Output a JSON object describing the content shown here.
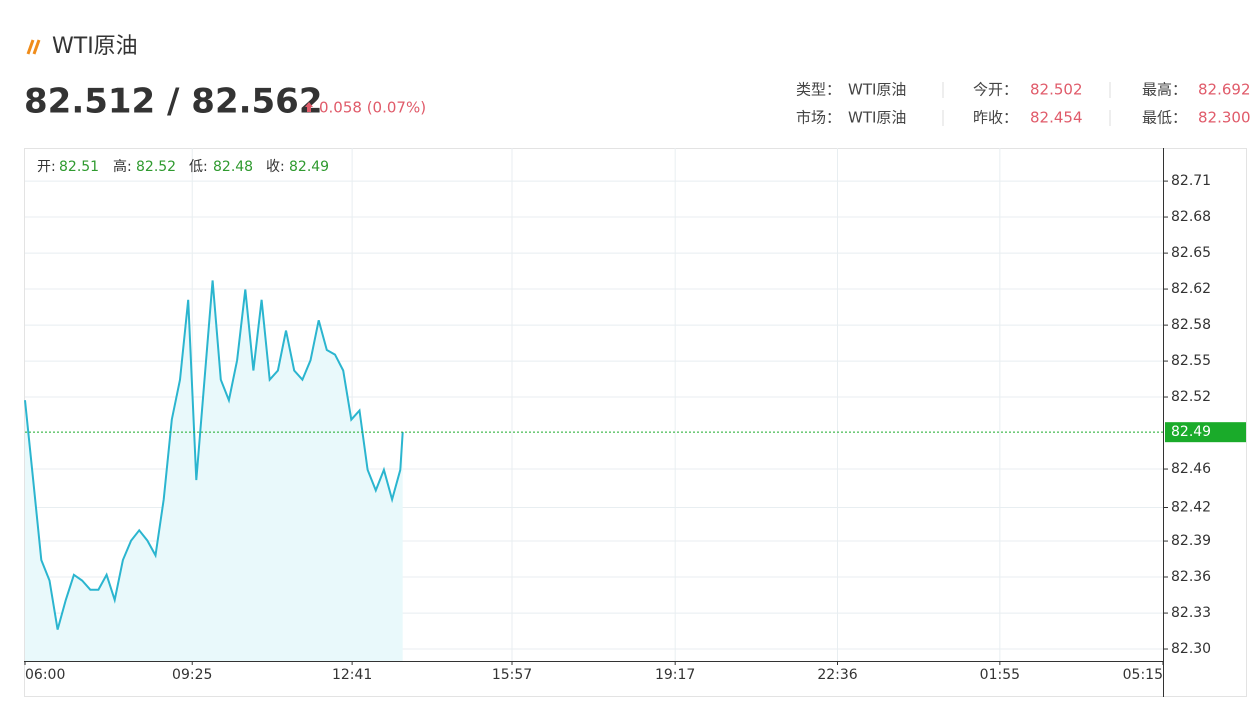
{
  "header": {
    "title": "WTI原油",
    "price": "82.512 / 82.562",
    "change": "0.058 (0.07%)",
    "info": [
      {
        "label": "类型：",
        "value": "WTI原油"
      },
      {
        "label": "今开：",
        "value": "82.502"
      },
      {
        "label": "最高：",
        "value": "82.692"
      },
      {
        "label": "市场：",
        "value": "WTI原油"
      },
      {
        "label": "昨收：",
        "value": "82.454"
      },
      {
        "label": "最低：",
        "value": "82.300"
      }
    ]
  },
  "chart_data": {
    "type": "line",
    "ohlc": [
      {
        "label": "开:",
        "value": 82.51
      },
      {
        "label": "高:",
        "value": 82.52
      },
      {
        "label": "低:",
        "value": 82.48
      },
      {
        "label": "收:",
        "value": 82.49
      }
    ],
    "x": [
      "06:00",
      "06:10",
      "06:20",
      "06:30",
      "06:40",
      "06:50",
      "07:00",
      "07:10",
      "07:20",
      "07:30",
      "07:40",
      "07:50",
      "08:00",
      "08:10",
      "08:20",
      "08:30",
      "08:40",
      "08:50",
      "09:00",
      "09:10",
      "09:20",
      "09:30",
      "09:40",
      "09:50",
      "10:00",
      "10:10",
      "10:20",
      "10:30",
      "10:40",
      "10:50",
      "11:00",
      "11:10",
      "11:20",
      "11:30",
      "11:40",
      "11:50",
      "12:00",
      "12:10",
      "12:20",
      "12:30",
      "12:40",
      "12:50",
      "13:00",
      "13:10",
      "13:20",
      "13:30",
      "13:40",
      "13:43"
    ],
    "series": [
      {
        "color": "#2bb5cf",
        "fill": "#e9f9fb",
        "values": [
          82.518,
          82.448,
          82.378,
          82.36,
          82.317,
          82.343,
          82.365,
          82.36,
          82.352,
          82.352,
          82.365,
          82.343,
          82.378,
          82.395,
          82.404,
          82.395,
          82.382,
          82.431,
          82.501,
          82.536,
          82.606,
          82.448,
          82.536,
          82.623,
          82.536,
          82.518,
          82.553,
          82.615,
          82.544,
          82.606,
          82.536,
          82.544,
          82.579,
          82.544,
          82.536,
          82.553,
          82.588,
          82.562,
          82.558,
          82.544,
          82.501,
          82.509,
          82.457,
          82.439,
          82.457,
          82.431,
          82.457,
          82.49
        ]
      }
    ],
    "xlim": [
      "06:00",
      "05:15"
    ],
    "xticks": [
      "06:00",
      "09:25",
      "12:41",
      "15:57",
      "19:17",
      "22:36",
      "01:55",
      "05:15"
    ],
    "ylim": [
      82.2895,
      82.739
    ],
    "yticks": [
      {
        "value": 82.3,
        "label": "82.30"
      },
      {
        "value": 82.3315,
        "label": "82.33"
      },
      {
        "value": 82.3631,
        "label": "82.36"
      },
      {
        "value": 82.3946,
        "label": "82.39"
      },
      {
        "value": 82.424,
        "label": "82.42"
      },
      {
        "value": 82.4577,
        "label": "82.46"
      },
      {
        "value": 82.5208,
        "label": "82.52"
      },
      {
        "value": 82.5523,
        "label": "82.55"
      },
      {
        "value": 82.5838,
        "label": "82.58"
      },
      {
        "value": 82.6154,
        "label": "82.62"
      },
      {
        "value": 82.6469,
        "label": "82.65"
      },
      {
        "value": 82.6785,
        "label": "82.68"
      },
      82.71
    ],
    "grid": true,
    "last_color": "#1aab2a"
  }
}
